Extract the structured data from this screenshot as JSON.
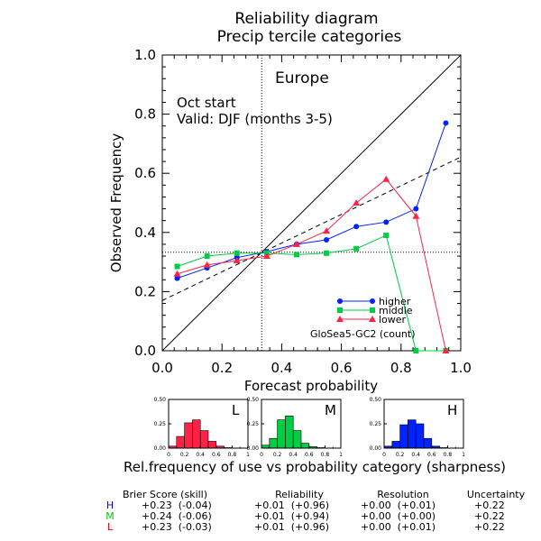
{
  "title_line1": "Reliability diagram",
  "title_line2": "Precip tercile categories",
  "region": "Europe",
  "start_label": "Oct start",
  "valid_label": "Valid: DJF (months 3-5)",
  "model_label": "GloSea5-GC2 (count)",
  "sharpness_title": "Rel.frequency of use vs probability category (sharpness)",
  "colors": {
    "higher": "#0022ff",
    "middle": "#00cc44",
    "lower": "#ff2244",
    "black": "#000000"
  },
  "chart_data": {
    "type": "line",
    "xlabel": "Forecast probability",
    "ylabel": "Observed Frequency",
    "xlim": [
      0,
      1
    ],
    "ylim": [
      0,
      1
    ],
    "xticks": [
      "0.0",
      "0.2",
      "0.4",
      "0.6",
      "0.8",
      "1.0"
    ],
    "yticks": [
      "0.0",
      "0.2",
      "0.4",
      "0.6",
      "0.8",
      "1.0"
    ],
    "climatology": 0.333,
    "dashed_line": {
      "x": [
        0,
        1
      ],
      "y": [
        0.17,
        0.655
      ]
    },
    "legend_position": "bottom-right",
    "series": [
      {
        "name": "higher",
        "key": "higher",
        "marker": "circle",
        "x": [
          0.05,
          0.15,
          0.25,
          0.35,
          0.45,
          0.55,
          0.65,
          0.75,
          0.85,
          0.95
        ],
        "y": [
          0.245,
          0.28,
          0.315,
          0.335,
          0.36,
          0.375,
          0.42,
          0.435,
          0.48,
          0.77
        ]
      },
      {
        "name": "middle",
        "key": "middle",
        "marker": "square",
        "x": [
          0.05,
          0.15,
          0.25,
          0.35,
          0.45,
          0.55,
          0.65,
          0.75,
          0.85,
          0.95
        ],
        "y": [
          0.285,
          0.32,
          0.33,
          0.33,
          0.325,
          0.33,
          0.345,
          0.39,
          0.0,
          0.0
        ]
      },
      {
        "name": "lower",
        "key": "lower",
        "marker": "triangle",
        "x": [
          0.05,
          0.15,
          0.25,
          0.35,
          0.45,
          0.55,
          0.65,
          0.75,
          0.85,
          0.95
        ],
        "y": [
          0.26,
          0.29,
          0.305,
          0.32,
          0.36,
          0.405,
          0.5,
          0.58,
          0.455,
          0.0
        ]
      }
    ],
    "histograms": [
      {
        "label": "L",
        "key": "lower",
        "values": [
          0.02,
          0.12,
          0.26,
          0.29,
          0.18,
          0.07,
          0.02,
          0.005,
          0,
          0
        ]
      },
      {
        "label": "M",
        "key": "middle",
        "values": [
          0.03,
          0.1,
          0.29,
          0.33,
          0.18,
          0.05,
          0.015,
          0.005,
          0,
          0
        ]
      },
      {
        "label": "H",
        "key": "higher",
        "values": [
          0.02,
          0.07,
          0.24,
          0.29,
          0.25,
          0.1,
          0.02,
          0.005,
          0,
          0
        ]
      }
    ],
    "hist_yticks": [
      "0.00",
      "0.25",
      "0.50"
    ],
    "hist_xticks": [
      "0",
      "0.2",
      "0.4",
      "0.6",
      "0.8",
      "1"
    ]
  },
  "scores": {
    "headers": [
      "Brier Score (skill)",
      "Reliability",
      "Resolution",
      "Uncertainty"
    ],
    "rows": [
      {
        "label": "H",
        "key": "higher",
        "brier": "+0.23  (-0.04)",
        "reliability": "+0.01  (+0.96)",
        "resolution": "+0.00  (+0.01)",
        "uncertainty": "+0.22"
      },
      {
        "label": "M",
        "key": "middle",
        "brier": "+0.24  (-0.06)",
        "reliability": "+0.01  (+0.94)",
        "resolution": "+0.00  (+0.00)",
        "uncertainty": "+0.22"
      },
      {
        "label": "L",
        "key": "lower",
        "brier": "+0.23  (-0.03)",
        "reliability": "+0.01  (+0.96)",
        "resolution": "+0.00  (+0.01)",
        "uncertainty": "+0.22"
      }
    ]
  }
}
